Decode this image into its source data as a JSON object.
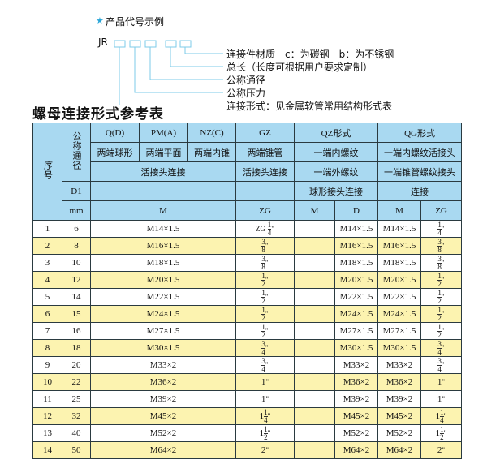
{
  "diagram": {
    "heading": "产品代号示例",
    "code_prefix": "JR",
    "code_dash": "-",
    "labels": [
      "连接件材质　c：为碳钢　b：为不锈钢",
      "总长（长度可根据用户要求定制）",
      "公称通径",
      "公称压力",
      "连接形式：见金属软管常用结构形式表"
    ],
    "accent": "#2aa6d8"
  },
  "title": "螺母连接形式参考表",
  "table": {
    "h_seq": "序号",
    "h_dn": "公称通径",
    "h_d1": "D1",
    "h_mm": "mm",
    "h_q": "Q(D)",
    "h_pm": "PM(A)",
    "h_nz": "NZ(C)",
    "h_gz": "GZ",
    "h_qz": "QZ形式",
    "h_qg": "QG形式",
    "r2_q": "两端球形",
    "r2_pm": "两端平面",
    "r2_nz": "两端内锥",
    "r2_gz": "两端锥管",
    "r2_qz": "一端内螺纹",
    "r2_qg": "一端内螺纹活接头",
    "r3_a": "活接头连接",
    "r3_gz": "活接头连接",
    "r3_qz": "一端外螺纹",
    "r3_qg": "一端锥管螺纹接头",
    "r4_qz": "球形接头连接",
    "r4_qg": "连接",
    "r5_m": "M",
    "r5_zg": "ZG",
    "r5_qzm": "M",
    "r5_qzd": "D",
    "r5_qgm": "M",
    "r5_qgzg": "ZG",
    "header_color": "#a9d9f1",
    "stripe_color": "#fcf3b0",
    "rows": [
      {
        "n": "1",
        "dn": "6",
        "m": "M14×1.5",
        "zg_prefix": "ZG",
        "zg": [
          "",
          "1",
          "4"
        ],
        "qzm": "",
        "qzd": "M14×1.5",
        "qgm": "M14×1.5",
        "qgzg": [
          "",
          "1",
          "4"
        ]
      },
      {
        "n": "2",
        "dn": "8",
        "m": "M16×1.5",
        "zg_prefix": "",
        "zg": [
          "",
          "3",
          "8"
        ],
        "qzm": "",
        "qzd": "M16×1.5",
        "qgm": "M16×1.5",
        "qgzg": [
          "",
          "3",
          "8"
        ]
      },
      {
        "n": "3",
        "dn": "10",
        "m": "M18×1.5",
        "zg_prefix": "",
        "zg": [
          "",
          "3",
          "8"
        ],
        "qzm": "",
        "qzd": "M18×1.5",
        "qgm": "M18×1.5",
        "qgzg": [
          "",
          "3",
          "8"
        ]
      },
      {
        "n": "4",
        "dn": "12",
        "m": "M20×1.5",
        "zg_prefix": "",
        "zg": [
          "",
          "1",
          "2"
        ],
        "qzm": "",
        "qzd": "M20×1.5",
        "qgm": "M20×1.5",
        "qgzg": [
          "",
          "1",
          "2"
        ]
      },
      {
        "n": "5",
        "dn": "14",
        "m": "M22×1.5",
        "zg_prefix": "",
        "zg": [
          "",
          "1",
          "2"
        ],
        "qzm": "",
        "qzd": "M22×1.5",
        "qgm": "M22×1.5",
        "qgzg": [
          "",
          "1",
          "2"
        ]
      },
      {
        "n": "6",
        "dn": "15",
        "m": "M24×1.5",
        "zg_prefix": "",
        "zg": [
          "",
          "1",
          "2"
        ],
        "qzm": "",
        "qzd": "M24×1.5",
        "qgm": "M24×1.5",
        "qgzg": [
          "",
          "1",
          "2"
        ]
      },
      {
        "n": "7",
        "dn": "16",
        "m": "M27×1.5",
        "zg_prefix": "",
        "zg": [
          "",
          "1",
          "2"
        ],
        "qzm": "",
        "qzd": "M27×1.5",
        "qgm": "M27×1.5",
        "qgzg": [
          "",
          "1",
          "2"
        ]
      },
      {
        "n": "8",
        "dn": "18",
        "m": "M30×1.5",
        "zg_prefix": "",
        "zg": [
          "",
          "3",
          "4"
        ],
        "qzm": "",
        "qzd": "M30×1.5",
        "qgm": "M30×1.5",
        "qgzg": [
          "",
          "3",
          "4"
        ]
      },
      {
        "n": "9",
        "dn": "20",
        "m": "M33×2",
        "zg_prefix": "",
        "zg": [
          "",
          "3",
          "4"
        ],
        "qzm": "",
        "qzd": "M33×2",
        "qgm": "M33×2",
        "qgzg": [
          "",
          "3",
          "4"
        ]
      },
      {
        "n": "10",
        "dn": "22",
        "m": "M36×2",
        "zg_prefix": "",
        "zg": [
          "1",
          "",
          ""
        ],
        "qzm": "",
        "qzd": "M36×2",
        "qgm": "M36×2",
        "qgzg": [
          "1",
          "",
          ""
        ]
      },
      {
        "n": "11",
        "dn": "25",
        "m": "M39×2",
        "zg_prefix": "",
        "zg": [
          "1",
          "",
          ""
        ],
        "qzm": "",
        "qzd": "M39×2",
        "qgm": "M39×2",
        "qgzg": [
          "1",
          "",
          ""
        ]
      },
      {
        "n": "12",
        "dn": "32",
        "m": "M45×2",
        "zg_prefix": "",
        "zg": [
          "1",
          "1",
          "4"
        ],
        "qzm": "",
        "qzd": "M45×2",
        "qgm": "M45×2",
        "qgzg": [
          "1",
          "1",
          "4"
        ]
      },
      {
        "n": "13",
        "dn": "40",
        "m": "M52×2",
        "zg_prefix": "",
        "zg": [
          "1",
          "1",
          "2"
        ],
        "qzm": "",
        "qzd": "M52×2",
        "qgm": "M52×2",
        "qgzg": [
          "1",
          "1",
          "2"
        ]
      },
      {
        "n": "14",
        "dn": "50",
        "m": "M64×2",
        "zg_prefix": "",
        "zg": [
          "2",
          "",
          ""
        ],
        "qzm": "",
        "qzd": "M64×2",
        "qgm": "M64×2",
        "qgzg": [
          "2",
          "",
          ""
        ]
      }
    ]
  }
}
